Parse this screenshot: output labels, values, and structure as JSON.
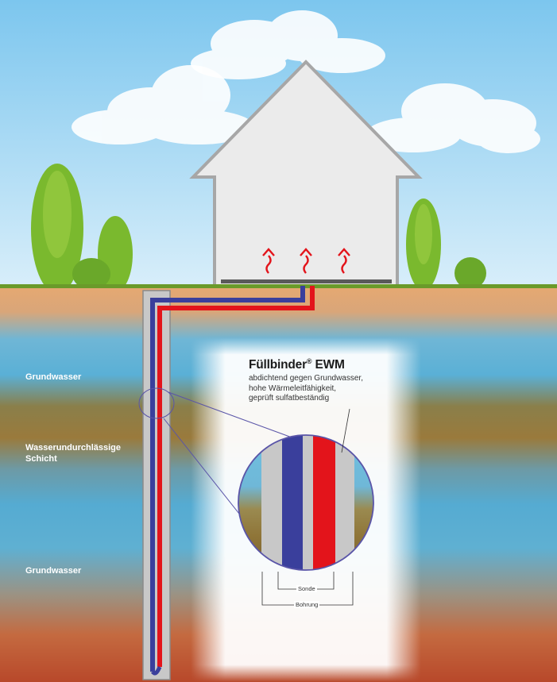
{
  "layers": [
    {
      "id": "groundwater-top",
      "label": "Grundwasser"
    },
    {
      "id": "impermeable",
      "label": "Wasserundurchlässige\nSchicht"
    },
    {
      "id": "groundwater-bottom",
      "label": "Grundwasser"
    }
  ],
  "product": {
    "name": "Füllbinder",
    "registered": "®",
    "suffix": " EWM",
    "lines": [
      "abdichtend gegen Grundwasser,",
      "hohe Wärmeleitfähigkeit,",
      "geprüft sulfatbeständig"
    ]
  },
  "callouts": {
    "probe": "Sonde",
    "borehole": "Bohrung"
  },
  "colors": {
    "sky": "#a8d8f0",
    "soil": "#e0a673",
    "groundwater": "#5bb0d4",
    "impermeable": "#9a7a3c",
    "deep_soil": "#c0542c",
    "pipe_cold": "#3a3f9c",
    "pipe_hot": "#e3141b",
    "grout": "#c8c8c8",
    "tree": "#7ab92e",
    "house": "#ebebeb",
    "heat_arrow": "#e3141b"
  }
}
